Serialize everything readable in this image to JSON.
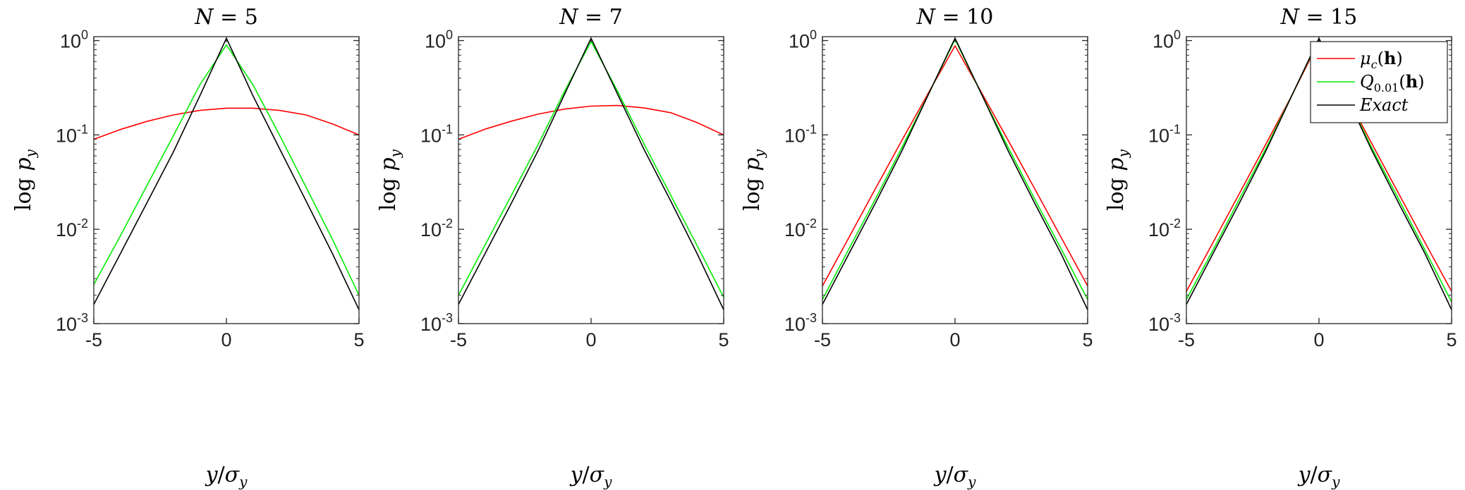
{
  "chart_data": [
    {
      "type": "line",
      "title": {
        "var": "N",
        "rel": " = ",
        "value": "5"
      },
      "xlabel": {
        "num": "y",
        "slash": "/",
        "den": "σ",
        "den_sub": "y"
      },
      "ylabel": {
        "fn": "log ",
        "var": "p",
        "sub": "y"
      },
      "xlim": [
        -5,
        5
      ],
      "ylim": [
        0.001,
        1.1
      ],
      "yscale": "log",
      "xticks": [
        "-5",
        "0",
        "5"
      ],
      "yticks": [
        {
          "base": "10",
          "exp": "0"
        },
        {
          "base": "10",
          "exp": "-1"
        },
        {
          "base": "10",
          "exp": "-2"
        },
        {
          "base": "10",
          "exp": "-3"
        }
      ],
      "grid": false,
      "series": [
        {
          "color": "#ff0000",
          "x": [
            -5,
            -4,
            -3,
            -2,
            -1,
            0,
            1,
            2,
            3,
            4,
            5
          ],
          "y": [
            0.09,
            0.114,
            0.139,
            0.163,
            0.182,
            0.192,
            0.192,
            0.182,
            0.163,
            0.131,
            0.1
          ]
        },
        {
          "color": "#00ee00",
          "x": [
            -5,
            -4,
            -3,
            -2,
            -1,
            0,
            1,
            2,
            3,
            4,
            5
          ],
          "y": [
            0.0026,
            0.0085,
            0.029,
            0.098,
            0.34,
            0.9,
            0.34,
            0.1,
            0.028,
            0.0078,
            0.002
          ]
        },
        {
          "color": "#000000",
          "x": [
            -5,
            -4,
            -3,
            -2,
            -1,
            0,
            1,
            2,
            3,
            4,
            5
          ],
          "y": [
            0.0016,
            0.0055,
            0.019,
            0.066,
            0.26,
            1.06,
            0.26,
            0.072,
            0.02,
            0.0055,
            0.0014
          ]
        }
      ]
    },
    {
      "type": "line",
      "title": {
        "var": "N",
        "rel": " = ",
        "value": "7"
      },
      "xlabel": {
        "num": "y",
        "slash": "/",
        "den": "σ",
        "den_sub": "y"
      },
      "ylabel": {
        "fn": "log ",
        "var": "p",
        "sub": "y"
      },
      "xlim": [
        -5,
        5
      ],
      "ylim": [
        0.001,
        1.1
      ],
      "yscale": "log",
      "xticks": [
        "-5",
        "0",
        "5"
      ],
      "yticks": [
        {
          "base": "10",
          "exp": "0"
        },
        {
          "base": "10",
          "exp": "-1"
        },
        {
          "base": "10",
          "exp": "-2"
        },
        {
          "base": "10",
          "exp": "-3"
        }
      ],
      "grid": false,
      "series": [
        {
          "color": "#ff0000",
          "x": [
            -5,
            -4,
            -3,
            -2,
            -1,
            0,
            1,
            2,
            3,
            4,
            5
          ],
          "y": [
            0.09,
            0.115,
            0.14,
            0.166,
            0.188,
            0.202,
            0.205,
            0.193,
            0.172,
            0.135,
            0.1
          ]
        },
        {
          "color": "#00ee00",
          "x": [
            -5,
            -4,
            -3,
            -2,
            -1,
            0,
            1,
            2,
            3,
            4,
            5
          ],
          "y": [
            0.002,
            0.0068,
            0.023,
            0.079,
            0.29,
            0.98,
            0.29,
            0.08,
            0.023,
            0.0067,
            0.0019
          ]
        },
        {
          "color": "#000000",
          "x": [
            -5,
            -4,
            -3,
            -2,
            -1,
            0,
            1,
            2,
            3,
            4,
            5
          ],
          "y": [
            0.0016,
            0.0055,
            0.019,
            0.068,
            0.27,
            1.06,
            0.27,
            0.07,
            0.02,
            0.0055,
            0.0014
          ]
        }
      ]
    },
    {
      "type": "line",
      "title": {
        "var": "N",
        "rel": " = ",
        "value": "10"
      },
      "xlabel": {
        "num": "y",
        "slash": "/",
        "den": "σ",
        "den_sub": "y"
      },
      "ylabel": {
        "fn": "log ",
        "var": "p",
        "sub": "y"
      },
      "xlim": [
        -5,
        5
      ],
      "ylim": [
        0.001,
        1.1
      ],
      "yscale": "log",
      "xticks": [
        "-5",
        "0",
        "5"
      ],
      "yticks": [
        {
          "base": "10",
          "exp": "0"
        },
        {
          "base": "10",
          "exp": "-1"
        },
        {
          "base": "10",
          "exp": "-2"
        },
        {
          "base": "10",
          "exp": "-3"
        }
      ],
      "grid": false,
      "series": [
        {
          "color": "#ff0000",
          "x": [
            -5,
            -4,
            -3,
            -2,
            -1,
            0,
            1,
            2,
            3,
            4,
            5
          ],
          "y": [
            0.0025,
            0.0082,
            0.027,
            0.088,
            0.28,
            0.88,
            0.28,
            0.088,
            0.027,
            0.0082,
            0.0025
          ]
        },
        {
          "color": "#00ee00",
          "x": [
            -5,
            -4,
            -3,
            -2,
            -1,
            0,
            1,
            2,
            3,
            4,
            5
          ],
          "y": [
            0.0018,
            0.0062,
            0.021,
            0.074,
            0.27,
            1.03,
            0.27,
            0.074,
            0.021,
            0.0062,
            0.0018
          ]
        },
        {
          "color": "#000000",
          "x": [
            -5,
            -4,
            -3,
            -2,
            -1,
            0,
            1,
            2,
            3,
            4,
            5
          ],
          "y": [
            0.0016,
            0.0055,
            0.019,
            0.068,
            0.27,
            1.06,
            0.27,
            0.068,
            0.019,
            0.0055,
            0.0014
          ]
        }
      ]
    },
    {
      "type": "line",
      "title": {
        "var": "N",
        "rel": " = ",
        "value": "15"
      },
      "xlabel": {
        "num": "y",
        "slash": "/",
        "den": "σ",
        "den_sub": "y"
      },
      "ylabel": {
        "fn": "log ",
        "var": "p",
        "sub": "y"
      },
      "xlim": [
        -5,
        5
      ],
      "ylim": [
        0.001,
        1.1
      ],
      "yscale": "log",
      "xticks": [
        "-5",
        "0",
        "5"
      ],
      "yticks": [
        {
          "base": "10",
          "exp": "0"
        },
        {
          "base": "10",
          "exp": "-1"
        },
        {
          "base": "10",
          "exp": "-2"
        },
        {
          "base": "10",
          "exp": "-3"
        }
      ],
      "grid": false,
      "legend": {
        "location": "top-right",
        "entries": [
          {
            "color": "#ff0000",
            "parts": [
              {
                "t": "μ",
                "s": "italic"
              },
              {
                "t": "c",
                "s": "sub"
              },
              {
                "t": "(",
                "s": "up"
              },
              {
                "t": "h",
                "s": "bold"
              },
              {
                "t": ")",
                "s": "up"
              }
            ]
          },
          {
            "color": "#00ee00",
            "parts": [
              {
                "t": "Q",
                "s": "italic"
              },
              {
                "t": "0.01",
                "s": "subup"
              },
              {
                "t": "(",
                "s": "up"
              },
              {
                "t": "h",
                "s": "bold"
              },
              {
                "t": ")",
                "s": "up"
              }
            ]
          },
          {
            "color": "#000000",
            "parts": [
              {
                "t": "Exact",
                "s": "italic"
              }
            ]
          }
        ]
      },
      "series": [
        {
          "color": "#ff0000",
          "x": [
            -5,
            -4,
            -3,
            -2,
            -1,
            0,
            1,
            2,
            3,
            4,
            5
          ],
          "y": [
            0.0022,
            0.0072,
            0.024,
            0.08,
            0.27,
            0.98,
            0.27,
            0.08,
            0.024,
            0.0072,
            0.0022
          ]
        },
        {
          "color": "#00ee00",
          "x": [
            -5,
            -4,
            -3,
            -2,
            -1,
            0,
            1,
            2,
            3,
            4,
            5
          ],
          "y": [
            0.0018,
            0.006,
            0.021,
            0.072,
            0.27,
            1.04,
            0.27,
            0.072,
            0.021,
            0.006,
            0.0017
          ]
        },
        {
          "color": "#000000",
          "x": [
            -5,
            -4,
            -3,
            -2,
            -1,
            0,
            1,
            2,
            3,
            4,
            5
          ],
          "y": [
            0.0016,
            0.0055,
            0.019,
            0.068,
            0.27,
            1.06,
            0.27,
            0.068,
            0.019,
            0.0055,
            0.0014
          ]
        }
      ]
    }
  ]
}
